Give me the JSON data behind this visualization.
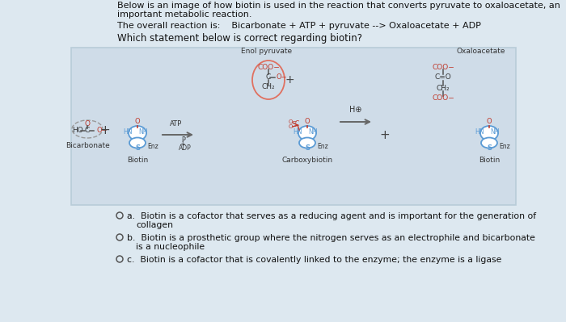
{
  "bg_color": "#dde8f0",
  "diagram_bg": "#cfdce8",
  "title_text1": "Below is an image of how biotin is used in the reaction that converts pyruvate to oxaloacetate, an",
  "title_text2": "important metabolic reaction.",
  "reaction_line": "The overall reaction is:    Bicarbonate + ATP + pyruvate --> Oxaloacetate + ADP",
  "question": "Which statement below is correct regarding biotin?",
  "opt_a_prefix": "a.  ",
  "opt_a_line1": "Biotin is a cofactor that serves as a reducing agent and is important for the generation of",
  "opt_a_line2": "collagen",
  "opt_b_prefix": "b.  ",
  "opt_b_line1": "Biotin is a prosthetic group where the nitrogen serves as an electrophile and bicarbonate",
  "opt_b_line2": "is a nucleophile",
  "opt_c_prefix": "c.  ",
  "opt_c_line1": "Biotin is a cofactor that is covalently linked to the enzyme; the enzyme is a ligase",
  "label_bicarbonate": "Bicarbonate",
  "label_biotin1": "Biotin",
  "label_carboxybiotin": "Carboxybiotin",
  "label_biotin2": "Biotin",
  "label_enol": "Enol pyruvate",
  "label_oxalo": "Oxaloacetate",
  "biotin_blue": "#5b9bd5",
  "red_color": "#c0392b",
  "pink_red": "#e07060",
  "dark_text": "#333333",
  "arrow_col": "#666666",
  "diagram_border": "#b8ccd8"
}
